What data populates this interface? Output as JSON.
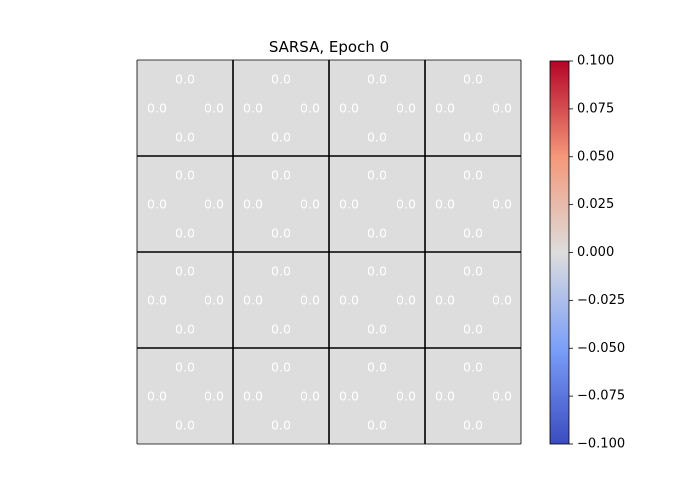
{
  "chart_data": {
    "type": "heatmap",
    "title": "SARSA, Epoch 0",
    "grid": {
      "rows": 4,
      "cols": 4
    },
    "cell_value_format": "0.0",
    "q_values": [
      [
        {
          "up": 0.0,
          "left": 0.0,
          "right": 0.0,
          "down": 0.0
        },
        {
          "up": 0.0,
          "left": 0.0,
          "right": 0.0,
          "down": 0.0
        },
        {
          "up": 0.0,
          "left": 0.0,
          "right": 0.0,
          "down": 0.0
        },
        {
          "up": 0.0,
          "left": 0.0,
          "right": 0.0,
          "down": 0.0
        }
      ],
      [
        {
          "up": 0.0,
          "left": 0.0,
          "right": 0.0,
          "down": 0.0
        },
        {
          "up": 0.0,
          "left": 0.0,
          "right": 0.0,
          "down": 0.0
        },
        {
          "up": 0.0,
          "left": 0.0,
          "right": 0.0,
          "down": 0.0
        },
        {
          "up": 0.0,
          "left": 0.0,
          "right": 0.0,
          "down": 0.0
        }
      ],
      [
        {
          "up": 0.0,
          "left": 0.0,
          "right": 0.0,
          "down": 0.0
        },
        {
          "up": 0.0,
          "left": 0.0,
          "right": 0.0,
          "down": 0.0
        },
        {
          "up": 0.0,
          "left": 0.0,
          "right": 0.0,
          "down": 0.0
        },
        {
          "up": 0.0,
          "left": 0.0,
          "right": 0.0,
          "down": 0.0
        }
      ],
      [
        {
          "up": 0.0,
          "left": 0.0,
          "right": 0.0,
          "down": 0.0
        },
        {
          "up": 0.0,
          "left": 0.0,
          "right": 0.0,
          "down": 0.0
        },
        {
          "up": 0.0,
          "left": 0.0,
          "right": 0.0,
          "down": 0.0
        },
        {
          "up": 0.0,
          "left": 0.0,
          "right": 0.0,
          "down": 0.0
        }
      ]
    ],
    "colorbar": {
      "colormap": "coolwarm",
      "vmin": -0.1,
      "vmax": 0.1,
      "ticks": [
        0.1,
        0.075,
        0.05,
        0.025,
        0.0,
        -0.025,
        -0.05,
        -0.075,
        -0.1
      ],
      "tick_labels": [
        "0.100",
        "0.075",
        "0.050",
        "0.025",
        "0.000",
        "−0.025",
        "−0.050",
        "−0.075",
        "−0.100"
      ],
      "colors": {
        "low": "#3b4cc0",
        "mid": "#dddddd",
        "high": "#b40426"
      }
    },
    "cell_fill_color": "#dddddd",
    "cell_text_color": "#ffffff",
    "grid_line_color": "#000000"
  }
}
